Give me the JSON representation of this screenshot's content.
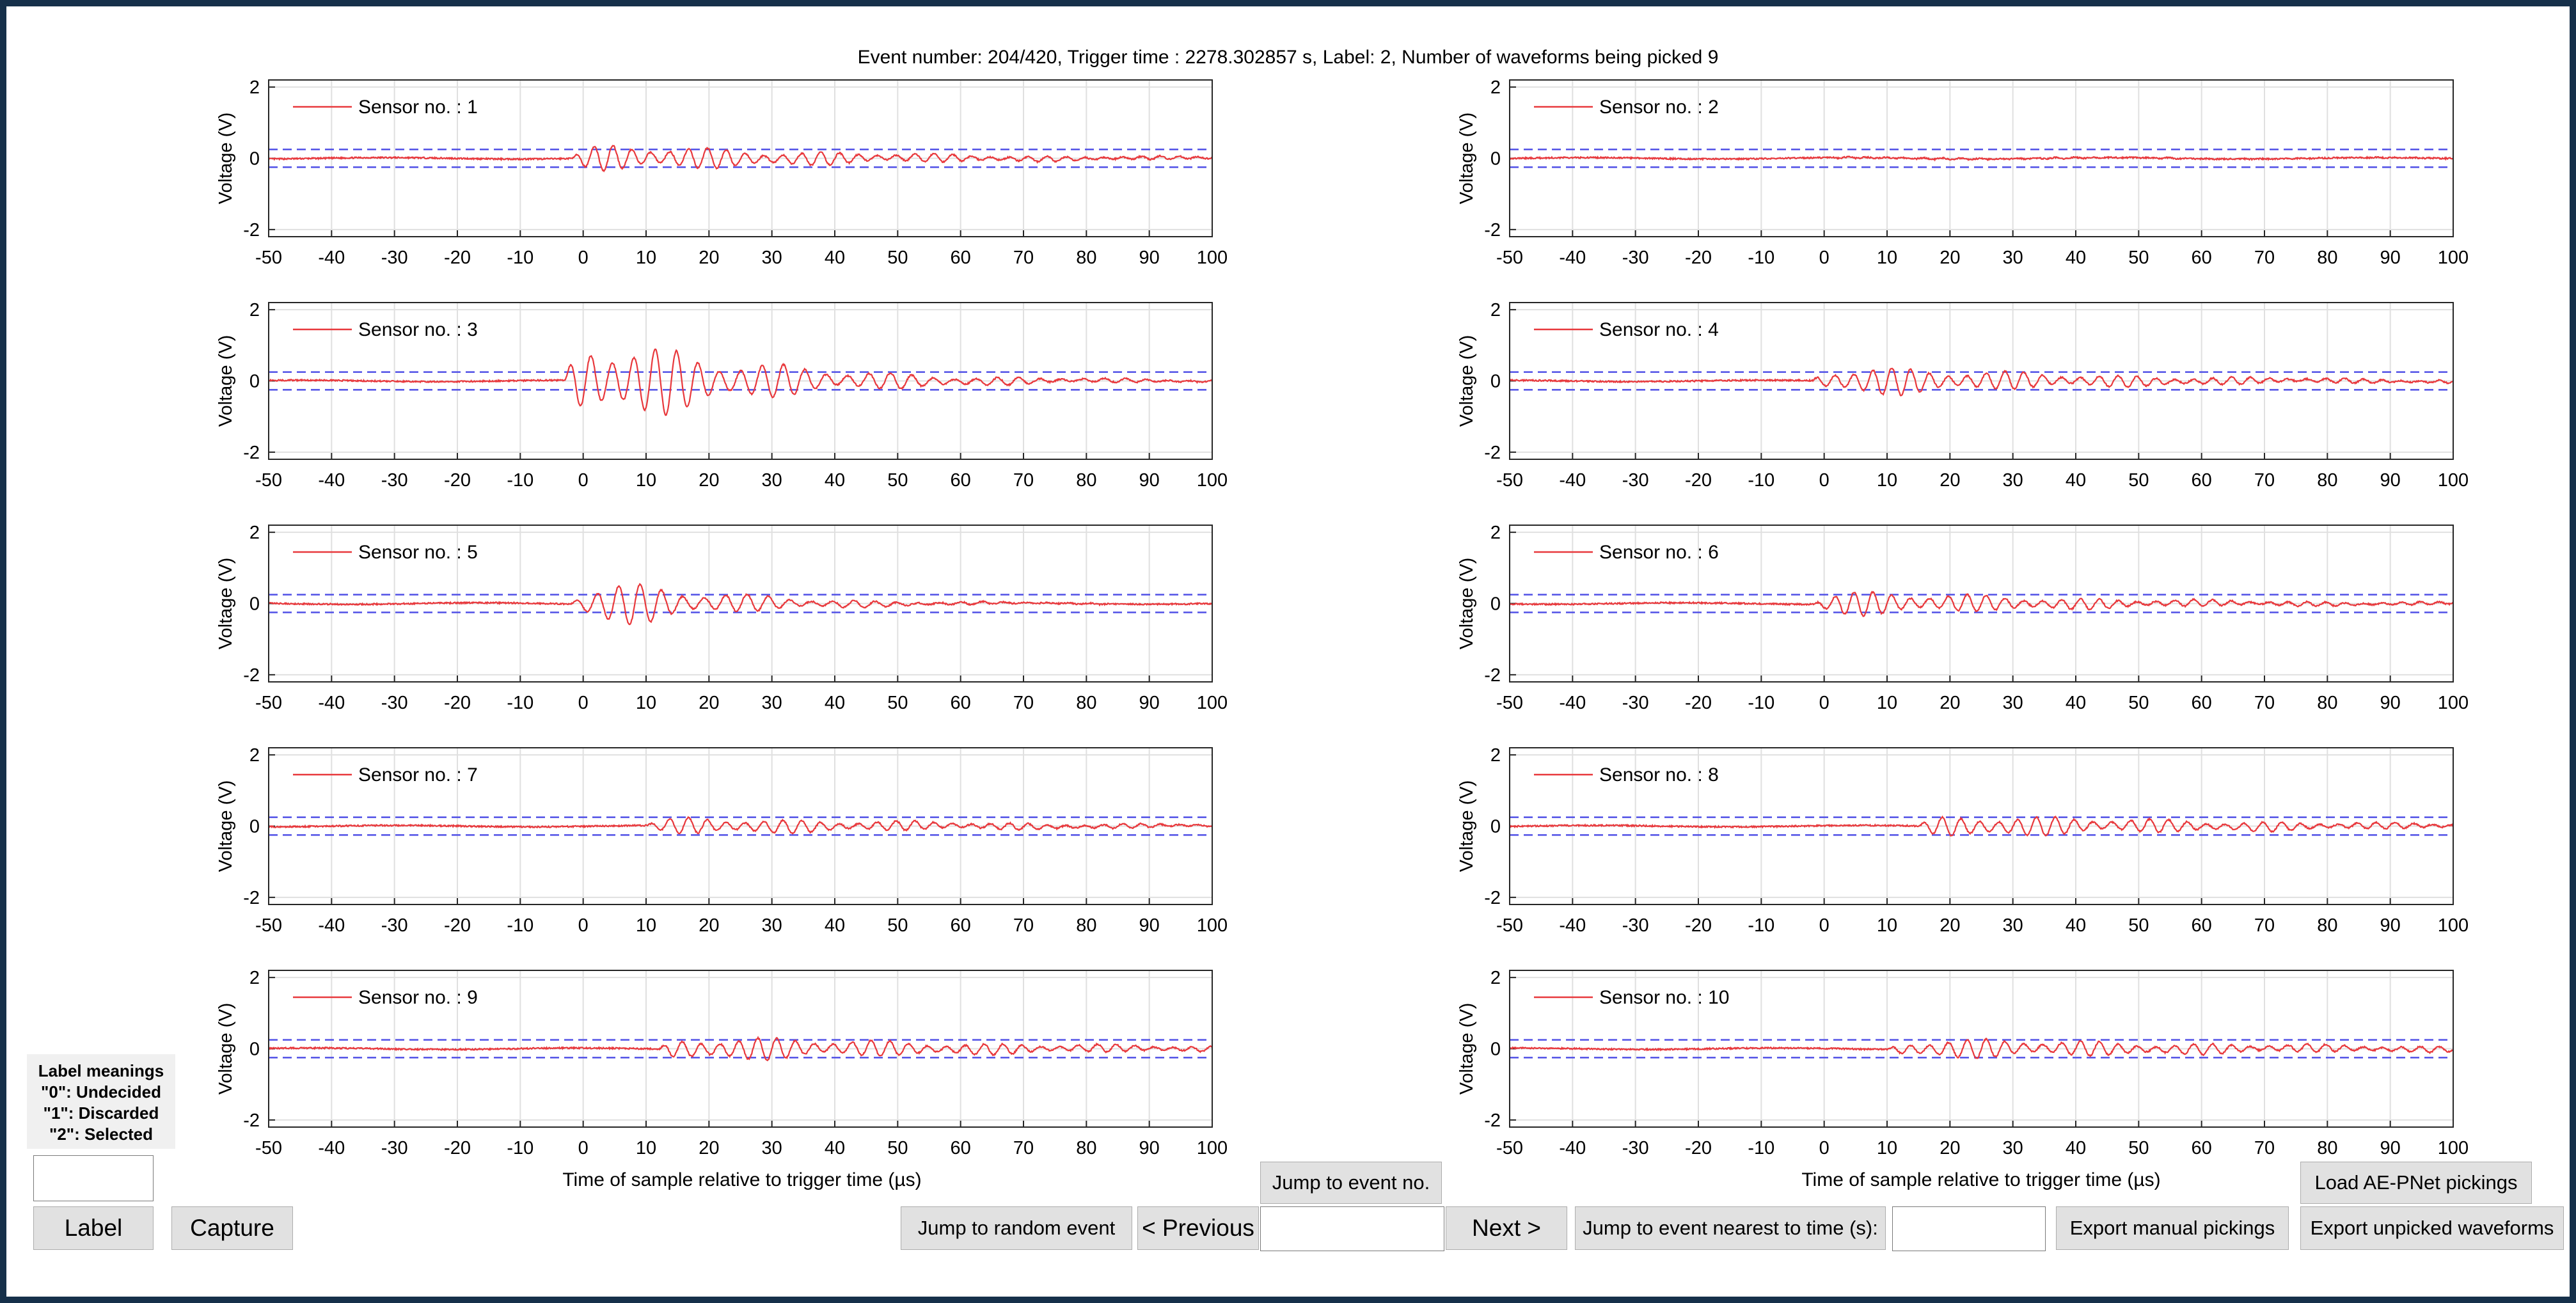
{
  "title": "Event number: 204/420, Trigger time : 2278.302857 s, Label: 2, Number of waveforms being picked 9",
  "axes": {
    "ylabel": "Voltage (V)",
    "xlabel": "Time of sample relative to trigger time (µs)",
    "xticks": [
      "-50",
      "-40",
      "-30",
      "-20",
      "-10",
      "0",
      "10",
      "20",
      "30",
      "40",
      "50",
      "60",
      "70",
      "80",
      "90",
      "100"
    ],
    "yticks": [
      "2",
      "0",
      "-2"
    ],
    "xlim": [
      -50,
      100
    ],
    "ylim": [
      -2.2,
      2.2
    ],
    "threshold": 0.25
  },
  "colors": {
    "waveform": "#e8383c",
    "threshold": "#5050e6",
    "grid": "#e0e0e0",
    "button_bg": "#e1e1e1"
  },
  "chart_data": [
    {
      "type": "line",
      "series": [
        {
          "name": "Sensor no. : 1",
          "peak": 0.5,
          "onset": -2,
          "decay": 40,
          "period": 3.0
        }
      ]
    },
    {
      "type": "line",
      "series": [
        {
          "name": "Sensor no. : 2",
          "peak": 0.03,
          "onset": 0,
          "decay": 60,
          "period": 3.0
        }
      ]
    },
    {
      "type": "line",
      "series": [
        {
          "name": "Sensor no. : 3",
          "peak": 1.8,
          "onset": -3,
          "decay": 25,
          "period": 3.4
        }
      ]
    },
    {
      "type": "line",
      "series": [
        {
          "name": "Sensor no. : 4",
          "peak": 0.55,
          "onset": -2,
          "decay": 40,
          "period": 3.0
        }
      ]
    },
    {
      "type": "line",
      "series": [
        {
          "name": "Sensor no. : 5",
          "peak": 1.0,
          "onset": -2,
          "decay": 20,
          "period": 3.4
        }
      ]
    },
    {
      "type": "line",
      "series": [
        {
          "name": "Sensor no. : 6",
          "peak": 0.45,
          "onset": -2,
          "decay": 40,
          "period": 3.0
        }
      ]
    },
    {
      "type": "line",
      "series": [
        {
          "name": "Sensor no. : 7",
          "peak": 0.3,
          "onset": 10,
          "decay": 50,
          "period": 3.0
        }
      ]
    },
    {
      "type": "line",
      "series": [
        {
          "name": "Sensor no. : 8",
          "peak": 0.4,
          "onset": 15,
          "decay": 50,
          "period": 3.0
        }
      ]
    },
    {
      "type": "line",
      "series": [
        {
          "name": "Sensor no. : 9",
          "peak": 0.45,
          "onset": 12,
          "decay": 50,
          "period": 3.0
        }
      ]
    },
    {
      "type": "line",
      "series": [
        {
          "name": "Sensor no. : 10",
          "peak": 0.35,
          "onset": 10,
          "decay": 60,
          "period": 3.0
        }
      ]
    }
  ],
  "legend_box": {
    "title": "Label meanings",
    "lines": [
      "\"0\": Undecided",
      "\"1\": Discarded",
      "\"2\": Selected"
    ]
  },
  "controls": {
    "label_input_value": "",
    "label_button": "Label",
    "capture_button": "Capture",
    "jump_event_button": "Jump to event no.",
    "jump_random_button": "Jump to random event",
    "previous_button": "< Previous",
    "event_no_input_value": "",
    "next_button": "Next >",
    "jump_time_button": "Jump to event nearest to time (s):",
    "time_input_value": "",
    "export_manual_button": "Export manual pickings",
    "load_aepnet_button": "Load AE-PNet pickings",
    "export_unpicked_button": "Export unpicked waveforms"
  }
}
